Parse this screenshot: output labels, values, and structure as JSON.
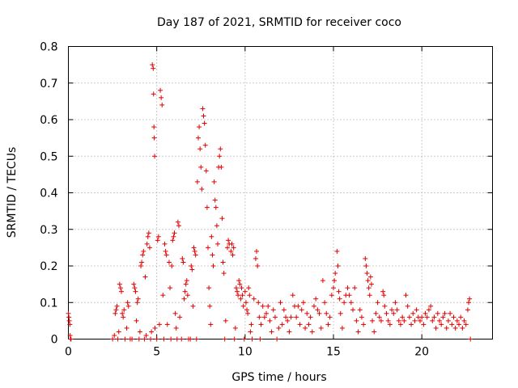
{
  "chart_data": {
    "type": "scatter",
    "title": "Day 187 of 2021, SRMTID for receiver coco",
    "xlabel": "GPS time / hours",
    "ylabel": "SRMTID / TECUs",
    "xlim": [
      0,
      24
    ],
    "ylim": [
      0,
      0.8
    ],
    "xticks": [
      0,
      5,
      10,
      15,
      20
    ],
    "xtick_labels": [
      "0",
      "5",
      "10",
      "15",
      "20"
    ],
    "yticks": [
      0,
      0.1,
      0.2,
      0.3,
      0.4,
      0.5,
      0.6,
      0.7,
      0.8
    ],
    "ytick_labels": [
      "0",
      "0.1",
      "0.2",
      "0.3",
      "0.4",
      "0.5",
      "0.6",
      "0.7",
      "0.8"
    ],
    "grid": true,
    "marker": "plus",
    "color": "#e00000",
    "series": [
      {
        "name": "SRMTID",
        "points": [
          [
            0.0,
            0.07
          ],
          [
            0.03,
            0.06
          ],
          [
            0.05,
            0.05
          ],
          [
            0.08,
            0.04
          ],
          [
            0.1,
            0.01
          ],
          [
            0.12,
            0.0
          ],
          [
            0.15,
            0.0
          ],
          [
            2.5,
            0.0
          ],
          [
            2.6,
            0.01
          ],
          [
            2.65,
            0.07
          ],
          [
            2.7,
            0.08
          ],
          [
            2.75,
            0.09
          ],
          [
            2.8,
            0.0
          ],
          [
            2.85,
            0.02
          ],
          [
            2.9,
            0.15
          ],
          [
            2.95,
            0.14
          ],
          [
            3.0,
            0.13
          ],
          [
            3.05,
            0.07
          ],
          [
            3.1,
            0.06
          ],
          [
            3.15,
            0.08
          ],
          [
            3.2,
            0.0
          ],
          [
            3.3,
            0.03
          ],
          [
            3.35,
            0.1
          ],
          [
            3.4,
            0.09
          ],
          [
            3.5,
            0.0
          ],
          [
            3.6,
            0.0
          ],
          [
            3.7,
            0.15
          ],
          [
            3.75,
            0.14
          ],
          [
            3.8,
            0.13
          ],
          [
            3.85,
            0.05
          ],
          [
            3.9,
            0.1
          ],
          [
            3.95,
            0.11
          ],
          [
            4.0,
            0.0
          ],
          [
            4.05,
            0.02
          ],
          [
            4.1,
            0.2
          ],
          [
            4.15,
            0.21
          ],
          [
            4.2,
            0.23
          ],
          [
            4.25,
            0.24
          ],
          [
            4.3,
            0.0
          ],
          [
            4.35,
            0.17
          ],
          [
            4.4,
            0.01
          ],
          [
            4.45,
            0.26
          ],
          [
            4.5,
            0.28
          ],
          [
            4.55,
            0.29
          ],
          [
            4.6,
            0.25
          ],
          [
            4.65,
            0.0
          ],
          [
            4.7,
            0.02
          ],
          [
            4.75,
            0.75
          ],
          [
            4.8,
            0.74
          ],
          [
            4.82,
            0.67
          ],
          [
            4.84,
            0.58
          ],
          [
            4.86,
            0.55
          ],
          [
            4.88,
            0.5
          ],
          [
            4.9,
            0.03
          ],
          [
            5.0,
            0.0
          ],
          [
            5.05,
            0.27
          ],
          [
            5.1,
            0.28
          ],
          [
            5.15,
            0.04
          ],
          [
            5.2,
            0.68
          ],
          [
            5.25,
            0.66
          ],
          [
            5.3,
            0.64
          ],
          [
            5.35,
            0.12
          ],
          [
            5.4,
            0.0
          ],
          [
            5.45,
            0.26
          ],
          [
            5.5,
            0.24
          ],
          [
            5.55,
            0.23
          ],
          [
            5.6,
            0.04
          ],
          [
            5.7,
            0.21
          ],
          [
            5.75,
            0.14
          ],
          [
            5.8,
            0.0
          ],
          [
            5.85,
            0.2
          ],
          [
            5.9,
            0.27
          ],
          [
            5.95,
            0.28
          ],
          [
            6.0,
            0.29
          ],
          [
            6.05,
            0.07
          ],
          [
            6.1,
            0.03
          ],
          [
            6.15,
            0.0
          ],
          [
            6.2,
            0.32
          ],
          [
            6.25,
            0.31
          ],
          [
            6.3,
            0.06
          ],
          [
            6.4,
            0.0
          ],
          [
            6.45,
            0.22
          ],
          [
            6.5,
            0.21
          ],
          [
            6.55,
            0.11
          ],
          [
            6.6,
            0.13
          ],
          [
            6.65,
            0.15
          ],
          [
            6.7,
            0.16
          ],
          [
            6.75,
            0.12
          ],
          [
            6.8,
            0.0
          ],
          [
            6.9,
            0.0
          ],
          [
            6.95,
            0.2
          ],
          [
            7.0,
            0.19
          ],
          [
            7.05,
            0.09
          ],
          [
            7.1,
            0.25
          ],
          [
            7.15,
            0.24
          ],
          [
            7.2,
            0.23
          ],
          [
            7.25,
            0.0
          ],
          [
            7.3,
            0.43
          ],
          [
            7.35,
            0.55
          ],
          [
            7.4,
            0.58
          ],
          [
            7.45,
            0.52
          ],
          [
            7.5,
            0.47
          ],
          [
            7.55,
            0.41
          ],
          [
            7.6,
            0.63
          ],
          [
            7.65,
            0.61
          ],
          [
            7.7,
            0.59
          ],
          [
            7.75,
            0.53
          ],
          [
            7.8,
            0.46
          ],
          [
            7.85,
            0.36
          ],
          [
            7.9,
            0.25
          ],
          [
            7.95,
            0.14
          ],
          [
            8.0,
            0.09
          ],
          [
            8.05,
            0.04
          ],
          [
            8.1,
            0.28
          ],
          [
            8.15,
            0.23
          ],
          [
            8.2,
            0.2
          ],
          [
            8.25,
            0.43
          ],
          [
            8.3,
            0.38
          ],
          [
            8.35,
            0.36
          ],
          [
            8.4,
            0.31
          ],
          [
            8.45,
            0.26
          ],
          [
            8.5,
            0.47
          ],
          [
            8.55,
            0.5
          ],
          [
            8.6,
            0.52
          ],
          [
            8.65,
            0.47
          ],
          [
            8.7,
            0.33
          ],
          [
            8.75,
            0.21
          ],
          [
            8.8,
            0.18
          ],
          [
            8.85,
            0.0
          ],
          [
            8.9,
            0.05
          ],
          [
            9.0,
            0.25
          ],
          [
            9.05,
            0.27
          ],
          [
            9.1,
            0.26
          ],
          [
            9.2,
            0.24
          ],
          [
            9.25,
            0.26
          ],
          [
            9.3,
            0.23
          ],
          [
            9.35,
            0.25
          ],
          [
            9.4,
            0.0
          ],
          [
            9.45,
            0.03
          ],
          [
            9.5,
            0.14
          ],
          [
            9.55,
            0.13
          ],
          [
            9.6,
            0.12
          ],
          [
            9.65,
            0.16
          ],
          [
            9.7,
            0.15
          ],
          [
            9.75,
            0.11
          ],
          [
            9.8,
            0.14
          ],
          [
            9.85,
            0.12
          ],
          [
            9.9,
            0.09
          ],
          [
            9.95,
            0.0
          ],
          [
            10.0,
            0.13
          ],
          [
            10.05,
            0.1
          ],
          [
            10.1,
            0.08
          ],
          [
            10.15,
            0.07
          ],
          [
            10.2,
            0.14
          ],
          [
            10.25,
            0.12
          ],
          [
            10.3,
            0.02
          ],
          [
            10.35,
            0.04
          ],
          [
            10.4,
            0.0
          ],
          [
            10.5,
            0.11
          ],
          [
            10.6,
            0.22
          ],
          [
            10.65,
            0.24
          ],
          [
            10.7,
            0.2
          ],
          [
            10.75,
            0.1
          ],
          [
            10.8,
            0.06
          ],
          [
            10.85,
            0.0
          ],
          [
            10.9,
            0.04
          ],
          [
            11.0,
            0.09
          ],
          [
            11.1,
            0.06
          ],
          [
            11.2,
            0.07
          ],
          [
            11.3,
            0.09
          ],
          [
            11.4,
            0.05
          ],
          [
            11.5,
            0.02
          ],
          [
            11.6,
            0.08
          ],
          [
            11.7,
            0.06
          ],
          [
            11.8,
            0.0
          ],
          [
            11.9,
            0.03
          ],
          [
            12.0,
            0.1
          ],
          [
            12.1,
            0.04
          ],
          [
            12.2,
            0.08
          ],
          [
            12.3,
            0.06
          ],
          [
            12.4,
            0.05
          ],
          [
            12.5,
            0.02
          ],
          [
            12.6,
            0.06
          ],
          [
            12.7,
            0.12
          ],
          [
            12.8,
            0.09
          ],
          [
            12.9,
            0.06
          ],
          [
            13.0,
            0.09
          ],
          [
            13.1,
            0.04
          ],
          [
            13.2,
            0.08
          ],
          [
            13.3,
            0.1
          ],
          [
            13.4,
            0.03
          ],
          [
            13.5,
            0.07
          ],
          [
            13.6,
            0.04
          ],
          [
            13.7,
            0.06
          ],
          [
            13.8,
            0.02
          ],
          [
            13.9,
            0.09
          ],
          [
            14.0,
            0.11
          ],
          [
            14.1,
            0.08
          ],
          [
            14.2,
            0.07
          ],
          [
            14.3,
            0.03
          ],
          [
            14.4,
            0.16
          ],
          [
            14.5,
            0.1
          ],
          [
            14.6,
            0.07
          ],
          [
            14.7,
            0.04
          ],
          [
            14.8,
            0.06
          ],
          [
            14.9,
            0.12
          ],
          [
            15.0,
            0.14
          ],
          [
            15.05,
            0.16
          ],
          [
            15.1,
            0.18
          ],
          [
            15.2,
            0.24
          ],
          [
            15.25,
            0.2
          ],
          [
            15.3,
            0.13
          ],
          [
            15.35,
            0.11
          ],
          [
            15.4,
            0.07
          ],
          [
            15.5,
            0.03
          ],
          [
            15.6,
            0.1
          ],
          [
            15.7,
            0.12
          ],
          [
            15.8,
            0.14
          ],
          [
            15.9,
            0.12
          ],
          [
            16.0,
            0.1
          ],
          [
            16.1,
            0.08
          ],
          [
            16.2,
            0.14
          ],
          [
            16.3,
            0.05
          ],
          [
            16.4,
            0.02
          ],
          [
            16.5,
            0.08
          ],
          [
            16.6,
            0.06
          ],
          [
            16.7,
            0.04
          ],
          [
            16.8,
            0.22
          ],
          [
            16.85,
            0.2
          ],
          [
            16.9,
            0.18
          ],
          [
            16.95,
            0.16
          ],
          [
            17.0,
            0.14
          ],
          [
            17.05,
            0.12
          ],
          [
            17.1,
            0.17
          ],
          [
            17.15,
            0.15
          ],
          [
            17.2,
            0.05
          ],
          [
            17.3,
            0.02
          ],
          [
            17.4,
            0.07
          ],
          [
            17.5,
            0.1
          ],
          [
            17.6,
            0.06
          ],
          [
            17.7,
            0.05
          ],
          [
            17.8,
            0.13
          ],
          [
            17.85,
            0.12
          ],
          [
            17.9,
            0.09
          ],
          [
            18.0,
            0.07
          ],
          [
            18.1,
            0.05
          ],
          [
            18.2,
            0.04
          ],
          [
            18.3,
            0.08
          ],
          [
            18.4,
            0.07
          ],
          [
            18.5,
            0.1
          ],
          [
            18.6,
            0.08
          ],
          [
            18.7,
            0.05
          ],
          [
            18.8,
            0.04
          ],
          [
            18.9,
            0.06
          ],
          [
            19.0,
            0.05
          ],
          [
            19.1,
            0.12
          ],
          [
            19.2,
            0.09
          ],
          [
            19.3,
            0.06
          ],
          [
            19.4,
            0.04
          ],
          [
            19.5,
            0.07
          ],
          [
            19.6,
            0.05
          ],
          [
            19.7,
            0.08
          ],
          [
            19.8,
            0.06
          ],
          [
            19.9,
            0.05
          ],
          [
            20.0,
            0.06
          ],
          [
            20.1,
            0.04
          ],
          [
            20.2,
            0.07
          ],
          [
            20.3,
            0.06
          ],
          [
            20.4,
            0.08
          ],
          [
            20.5,
            0.09
          ],
          [
            20.6,
            0.05
          ],
          [
            20.7,
            0.06
          ],
          [
            20.8,
            0.03
          ],
          [
            20.9,
            0.07
          ],
          [
            21.0,
            0.05
          ],
          [
            21.1,
            0.04
          ],
          [
            21.2,
            0.06
          ],
          [
            21.3,
            0.07
          ],
          [
            21.4,
            0.03
          ],
          [
            21.5,
            0.05
          ],
          [
            21.6,
            0.07
          ],
          [
            21.7,
            0.04
          ],
          [
            21.8,
            0.06
          ],
          [
            21.9,
            0.03
          ],
          [
            22.0,
            0.05
          ],
          [
            22.1,
            0.04
          ],
          [
            22.2,
            0.06
          ],
          [
            22.3,
            0.03
          ],
          [
            22.4,
            0.05
          ],
          [
            22.5,
            0.04
          ],
          [
            22.6,
            0.08
          ],
          [
            22.65,
            0.1
          ],
          [
            22.7,
            0.11
          ],
          [
            22.75,
            0.0
          ]
        ]
      }
    ]
  }
}
